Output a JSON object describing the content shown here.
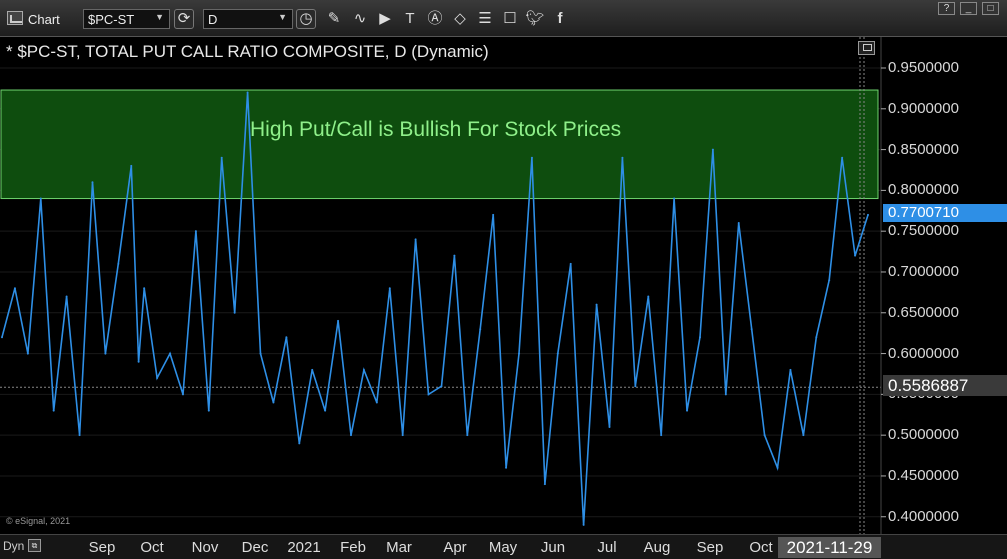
{
  "toolbar": {
    "title": "Chart",
    "symbol": "$PC-ST",
    "interval": "D"
  },
  "chart": {
    "title": "* $PC-ST, TOTAL PUT CALL RATIO COMPOSITE, D (Dynamic)",
    "zone_label": "High Put/Call is Bullish For Stock Prices",
    "copyright": "© eSignal, 2021",
    "current_value": "0.7700710",
    "cursor_value": "0.5586887",
    "cursor_date": "2021-11-29",
    "dyn_label": "Dyn",
    "colors": {
      "line": "#2e8fe6",
      "zone_fill": "#0e4d0e",
      "zone_border": "#6fd46f",
      "zone_text": "#8ff08a",
      "background": "#000000"
    }
  },
  "axis": {
    "ticks": [
      "0.9500000",
      "0.9000000",
      "0.8500000",
      "0.8000000",
      "0.7500000",
      "0.7000000",
      "0.6500000",
      "0.6000000",
      "0.5500000",
      "0.5000000",
      "0.4500000",
      "0.4000000"
    ],
    "months": [
      "Sep",
      "Oct",
      "Nov",
      "Dec",
      "2021",
      "Feb",
      "Mar",
      "Apr",
      "May",
      "Jun",
      "Jul",
      "Aug",
      "Sep",
      "Oct"
    ]
  },
  "chart_data": {
    "type": "line",
    "title": "* $PC-ST, TOTAL PUT CALL RATIO COMPOSITE, D (Dynamic)",
    "xlabel": "",
    "ylabel": "",
    "ylim": [
      0.38,
      0.97
    ],
    "x": [
      "2020-08-17",
      "2020-08-24",
      "2020-08-31",
      "2020-09-07",
      "2020-09-14",
      "2020-09-21",
      "2020-09-28",
      "2020-10-05",
      "2020-10-12",
      "2020-10-19",
      "2020-10-26",
      "2020-10-30",
      "2020-11-02",
      "2020-11-09",
      "2020-11-16",
      "2020-11-23",
      "2020-11-30",
      "2020-12-07",
      "2020-12-14",
      "2020-12-21",
      "2020-12-28",
      "2021-01-04",
      "2021-01-11",
      "2021-01-18",
      "2021-01-25",
      "2021-02-01",
      "2021-02-08",
      "2021-02-15",
      "2021-02-22",
      "2021-03-01",
      "2021-03-08",
      "2021-03-15",
      "2021-03-22",
      "2021-03-29",
      "2021-04-05",
      "2021-04-12",
      "2021-04-19",
      "2021-04-26",
      "2021-05-03",
      "2021-05-10",
      "2021-05-17",
      "2021-05-24",
      "2021-05-31",
      "2021-06-07",
      "2021-06-14",
      "2021-06-21",
      "2021-06-28",
      "2021-07-05",
      "2021-07-12",
      "2021-07-19",
      "2021-07-26",
      "2021-08-02",
      "2021-08-09",
      "2021-08-16",
      "2021-08-23",
      "2021-08-30",
      "2021-09-06",
      "2021-09-13",
      "2021-09-20",
      "2021-09-27",
      "2021-10-04",
      "2021-10-11",
      "2021-10-18",
      "2021-10-25",
      "2021-11-01",
      "2021-11-08",
      "2021-11-15",
      "2021-11-22",
      "2021-11-29"
    ],
    "series": [
      {
        "values": [
          0.62,
          0.68,
          0.6,
          0.79,
          0.53,
          0.67,
          0.5,
          0.81,
          0.6,
          0.71,
          0.83,
          0.59,
          0.68,
          0.57,
          0.6,
          0.55,
          0.75,
          0.53,
          0.84,
          0.65,
          0.92,
          0.6,
          0.54,
          0.62,
          0.49,
          0.58,
          0.53,
          0.64,
          0.5,
          0.58,
          0.54,
          0.68,
          0.5,
          0.74,
          0.55,
          0.56,
          0.72,
          0.5,
          0.63,
          0.77,
          0.46,
          0.6,
          0.84,
          0.44,
          0.6,
          0.71,
          0.39,
          0.66,
          0.51,
          0.84,
          0.56,
          0.67,
          0.5,
          0.79,
          0.53,
          0.62,
          0.85,
          0.55,
          0.76,
          0.63,
          0.5,
          0.46,
          0.58,
          0.5,
          0.62,
          0.69,
          0.84,
          0.72,
          0.77
        ]
      }
    ],
    "zones": [
      {
        "label": "High Put/Call is Bullish For Stock Prices",
        "from": 0.79,
        "to": 0.923
      }
    ],
    "current_value": 0.770071,
    "cursor_value": 0.5586887,
    "grid": true
  }
}
